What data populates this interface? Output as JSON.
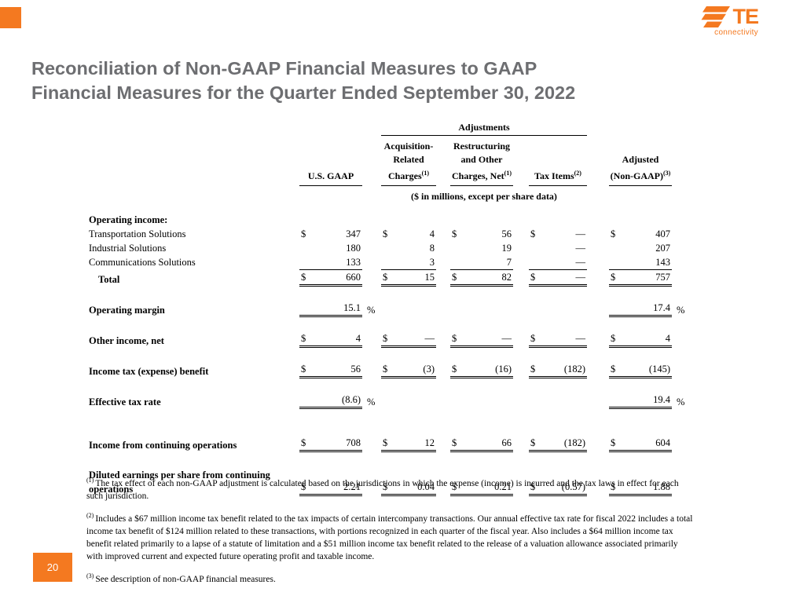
{
  "colors": {
    "accent_orange": "#F47920",
    "title_gray": "#6D6E71"
  },
  "logo": {
    "brand": "TE",
    "tagline": "connectivity"
  },
  "slide": {
    "title_line1": "Reconciliation of Non-GAAP Financial Measures to GAAP",
    "title_line2": "Financial Measures for the Quarter Ended September 30, 2022",
    "page_number": "20"
  },
  "table": {
    "header": {
      "adjustments": "Adjustments",
      "us_gaap": "U.S. GAAP",
      "acq": [
        "Acquisition-",
        "Related",
        "Charges"
      ],
      "acq_sup": "(1)",
      "restr": [
        "Restructuring",
        "and Other",
        "Charges, Net"
      ],
      "restr_sup": "(1)",
      "tax": "Tax Items",
      "tax_sup": "(2)",
      "adjusted": [
        "Adjusted",
        "(Non-GAAP)"
      ],
      "adjusted_sup": "(3)",
      "units": "($ in millions, except per share data)"
    },
    "rows": [
      {
        "label": "Operating income:",
        "bold": true,
        "cells": []
      },
      {
        "label": "Transportation Solutions",
        "cells": [
          {
            "d": "$",
            "v": "347"
          },
          {
            "d": "$",
            "v": "4"
          },
          {
            "d": "$",
            "v": "56"
          },
          {
            "d": "$",
            "v": "—"
          },
          {
            "d": "$",
            "v": "407"
          }
        ]
      },
      {
        "label": "Industrial Solutions",
        "cells": [
          {
            "v": "180"
          },
          {
            "v": "8"
          },
          {
            "v": "19"
          },
          {
            "v": "—"
          },
          {
            "v": "207"
          }
        ]
      },
      {
        "label": "Communications Solutions",
        "cells": [
          {
            "v": "133"
          },
          {
            "v": "3"
          },
          {
            "v": "7"
          },
          {
            "v": "—"
          },
          {
            "v": "143"
          }
        ]
      },
      {
        "label": "Total",
        "bold": true,
        "indent": true,
        "rule": "rule-total",
        "cells": [
          {
            "d": "$",
            "v": "660"
          },
          {
            "d": "$",
            "v": "15"
          },
          {
            "d": "$",
            "v": "82"
          },
          {
            "d": "$",
            "v": "—"
          },
          {
            "d": "$",
            "v": "757"
          }
        ]
      },
      {
        "label": "Operating margin",
        "bold": true,
        "mt": 18,
        "rule": "rule-double",
        "cells": [
          {
            "v": "15.1",
            "suf": "%"
          },
          null,
          null,
          null,
          {
            "v": "17.4",
            "suf": "%"
          }
        ]
      },
      {
        "label": "Other income, net",
        "bold": true,
        "mt": 18,
        "rule": "rule-double",
        "cells": [
          {
            "d": "$",
            "v": "4"
          },
          {
            "d": "$",
            "v": "—"
          },
          {
            "d": "$",
            "v": "—"
          },
          {
            "d": "$",
            "v": "—"
          },
          {
            "d": "$",
            "v": "4"
          }
        ]
      },
      {
        "label": "Income tax (expense) benefit",
        "bold": true,
        "mt": 18,
        "rule": "rule-double",
        "cells": [
          {
            "d": "$",
            "v": "56"
          },
          {
            "d": "$",
            "v": "(3)"
          },
          {
            "d": "$",
            "v": "(16)"
          },
          {
            "d": "$",
            "v": "(182)"
          },
          {
            "d": "$",
            "v": "(145)"
          }
        ]
      },
      {
        "label": "Effective tax rate",
        "bold": true,
        "mt": 18,
        "rule": "rule-double",
        "cells": [
          {
            "v": "(8.6)",
            "suf": "%"
          },
          null,
          null,
          null,
          {
            "v": "19.4",
            "suf": "%"
          }
        ]
      },
      {
        "label": "Income from continuing operations",
        "bold": true,
        "mt": 34,
        "rule": "rule-double",
        "cells": [
          {
            "d": "$",
            "v": "708"
          },
          {
            "d": "$",
            "v": "12"
          },
          {
            "d": "$",
            "v": "66"
          },
          {
            "d": "$",
            "v": "(182)"
          },
          {
            "d": "$",
            "v": "604"
          }
        ]
      },
      {
        "label": "Diluted earnings per share from continuing",
        "label2": "operations",
        "bold": true,
        "mt": 20,
        "rule": "rule-double",
        "cells": [
          {
            "d": "$",
            "v": "2.21"
          },
          {
            "d": "$",
            "v": "0.04"
          },
          {
            "d": "$",
            "v": "0.21"
          },
          {
            "d": "$",
            "v": "(0.57)"
          },
          {
            "d": "$",
            "v": "1.88"
          }
        ]
      }
    ]
  },
  "footnotes": [
    {
      "sup": "(1)",
      "text": "The tax effect of each non-GAAP adjustment is calculated based on the jurisdictions in which the expense (income) is incurred and the tax laws in effect for each such jurisdiction."
    },
    {
      "sup": "(2)",
      "text": "Includes a $67 million income tax benefit related to the tax impacts of certain intercompany transactions. Our annual effective tax rate for fiscal 2022 includes a total income tax benefit of $124 million related to these transactions, with portions recognized in each quarter of the fiscal year. Also includes a $64 million income tax benefit related primarily to a lapse of a statute of limitation and a $51 million income tax benefit related to the release of a valuation allowance associated primarily with improved current and expected future operating profit and taxable income."
    },
    {
      "sup": "(3)",
      "text": "See description of non-GAAP financial measures."
    }
  ]
}
